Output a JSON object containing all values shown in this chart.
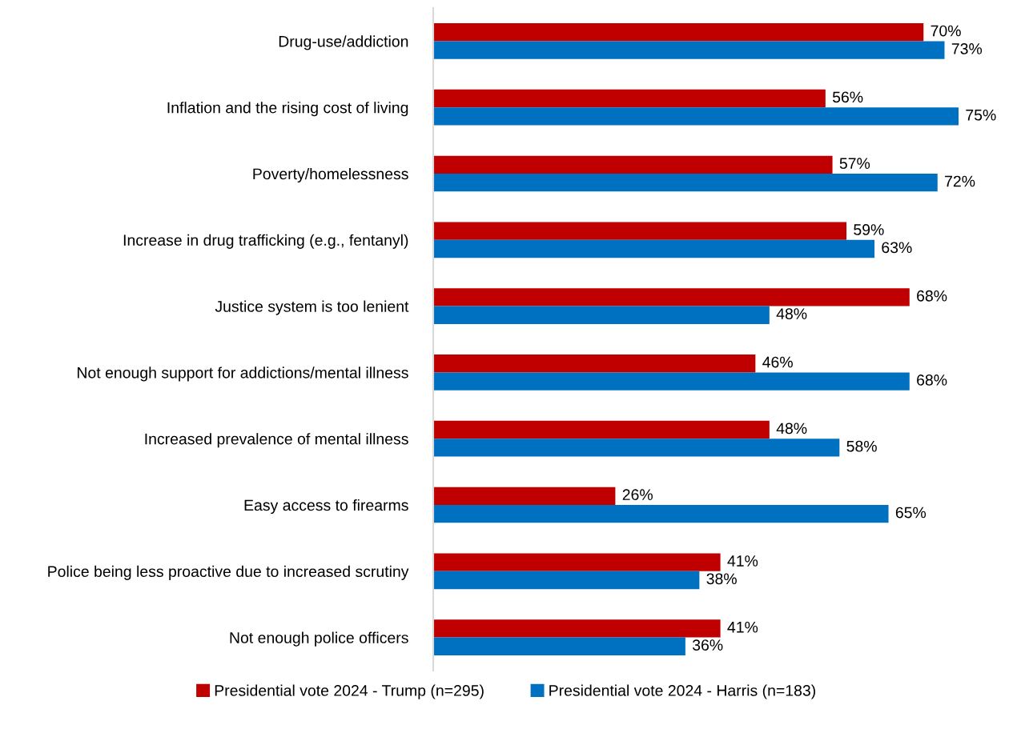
{
  "chart_data": {
    "type": "bar",
    "orientation": "horizontal",
    "categories": [
      "Drug-use/addiction",
      "Inflation and the rising cost of living",
      "Poverty/homelessness",
      "Increase in drug trafficking (e.g., fentanyl)",
      "Justice system is too lenient",
      "Not enough support for addictions/mental illness",
      "Increased prevalence of mental illness",
      "Easy access to firearms",
      "Police being less proactive due to increased scrutiny",
      "Not enough police officers"
    ],
    "series": [
      {
        "name": "Presidential vote 2024 - Trump (n=295)",
        "color": "#c00000",
        "values": [
          70,
          56,
          57,
          59,
          68,
          46,
          48,
          26,
          41,
          41
        ],
        "value_labels": [
          "70%",
          "56%",
          "57%",
          "59%",
          "68%",
          "46%",
          "48%",
          "26%",
          "41%",
          "41%"
        ]
      },
      {
        "name": "Presidential vote 2024 - Harris (n=183)",
        "color": "#0070c0",
        "values": [
          73,
          75,
          72,
          63,
          48,
          68,
          58,
          65,
          38,
          36
        ],
        "value_labels": [
          "73%",
          "75%",
          "72%",
          "63%",
          "48%",
          "68%",
          "58%",
          "65%",
          "38%",
          "36%"
        ]
      }
    ],
    "grid": false,
    "legend": "bottom"
  }
}
